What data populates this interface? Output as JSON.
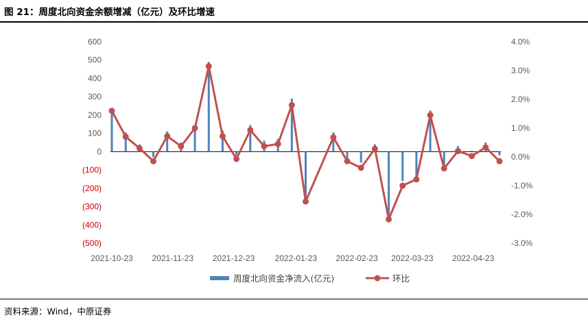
{
  "header": {
    "title": "图 21：周度北向资金余额增减（亿元）及环比增速"
  },
  "footer": {
    "source": "资料来源：Wind，中原证券"
  },
  "colors": {
    "bar": "#4f81bd",
    "line": "#c0504d",
    "negative_tick": "#c00000",
    "axis": "#595959"
  },
  "chart_data": {
    "type": "bar+line",
    "title": "",
    "xlabel": "",
    "ylabel": "",
    "y_left": {
      "ylim": [
        -500,
        600
      ],
      "ticks": [
        600,
        500,
        400,
        300,
        200,
        100,
        0,
        -100,
        -200,
        -300,
        -400,
        -500
      ],
      "tick_labels": [
        "600",
        "500",
        "400",
        "300",
        "200",
        "100",
        "0",
        "(100)",
        "(200)",
        "(300)",
        "(400)",
        "(500)"
      ]
    },
    "y_right": {
      "ylim": [
        -3.0,
        4.0
      ],
      "ticks": [
        4.0,
        3.0,
        2.0,
        1.0,
        0.0,
        -1.0,
        -2.0,
        -3.0
      ],
      "tick_labels": [
        "4.0%",
        "3.0%",
        "2.0%",
        "1.0%",
        "0.0%",
        "-1.0%",
        "-2.0%",
        "-3.0%"
      ]
    },
    "x_tick_labels": [
      "2021-10-23",
      "2021-11-23",
      "2021-12-23",
      "2022-01-23",
      "2022-02-23",
      "2022-03-23",
      "2022-04-23"
    ],
    "x_tick_week_index": [
      0,
      4.4,
      8.8,
      13.3,
      17.7,
      21.7,
      26.1
    ],
    "legend_position": "bottom",
    "series": [
      {
        "name": "周度北向资金净流入(亿元)",
        "type": "bar",
        "axis": "left",
        "values": [
          220,
          105,
          40,
          -30,
          110,
          50,
          130,
          490,
          115,
          -20,
          145,
          60,
          70,
          290,
          -280,
          0,
          105,
          -35,
          -60,
          40,
          -365,
          -160,
          -140,
          225,
          -85,
          30,
          5,
          50,
          -20
        ]
      },
      {
        "name": "环比",
        "type": "line",
        "axis": "right",
        "values": [
          1.6,
          0.7,
          0.3,
          -0.15,
          0.72,
          0.37,
          1.0,
          3.15,
          0.72,
          -0.07,
          0.93,
          0.37,
          0.45,
          1.8,
          -1.55,
          null,
          0.68,
          -0.15,
          -0.38,
          0.28,
          -2.17,
          -1.0,
          -0.78,
          1.45,
          -0.4,
          0.2,
          0.03,
          0.33,
          -0.15
        ]
      }
    ]
  }
}
